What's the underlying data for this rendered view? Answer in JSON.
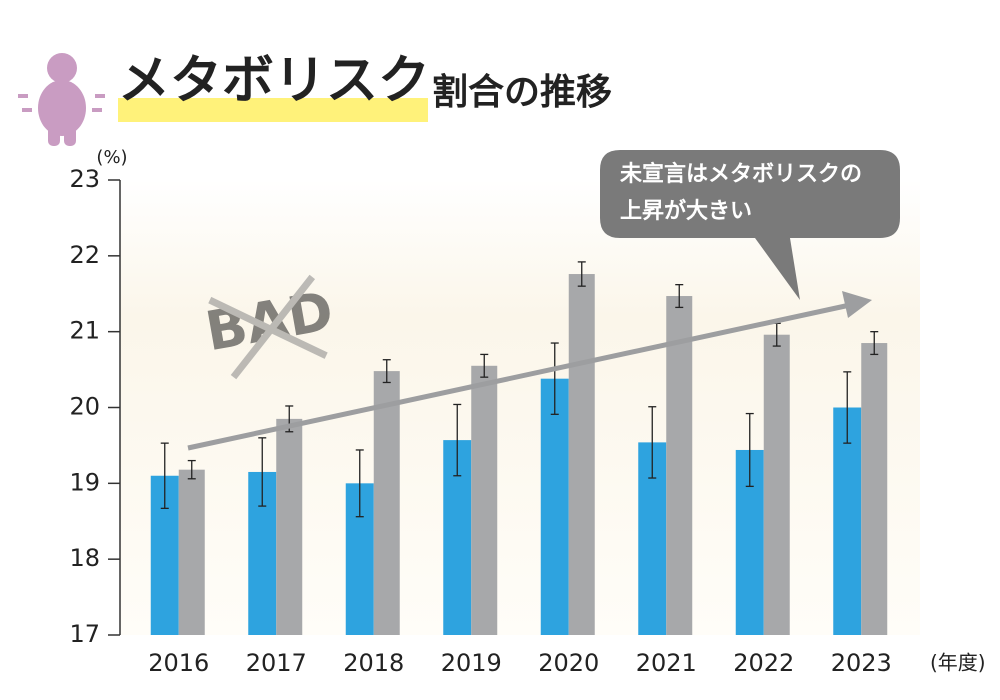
{
  "chart_data": {
    "type": "bar",
    "title": "メタボリスク",
    "subtitle": "割合の推移",
    "y_unit": "(%)",
    "x_unit": "(年度)",
    "annotation": [
      "未宣言はメタボリスクの",
      "上昇が大きい"
    ],
    "stamp": "BAD",
    "categories": [
      "2016",
      "2017",
      "2018",
      "2019",
      "2020",
      "2021",
      "2022",
      "2023"
    ],
    "series": [
      {
        "color": "#2ea3df",
        "values": [
          19.1,
          19.15,
          19.0,
          19.57,
          20.38,
          19.54,
          19.44,
          20.0
        ],
        "errors": [
          0.43,
          0.45,
          0.44,
          0.47,
          0.47,
          0.47,
          0.48,
          0.47
        ]
      },
      {
        "color": "#a7a8aa",
        "values": [
          19.18,
          19.85,
          20.48,
          20.55,
          21.76,
          21.47,
          20.96,
          20.85
        ],
        "errors": [
          0.12,
          0.17,
          0.15,
          0.15,
          0.16,
          0.15,
          0.15,
          0.15
        ]
      }
    ],
    "ylim": [
      17,
      23
    ],
    "yticks": [
      17,
      18,
      19,
      20,
      21,
      22,
      23
    ]
  }
}
